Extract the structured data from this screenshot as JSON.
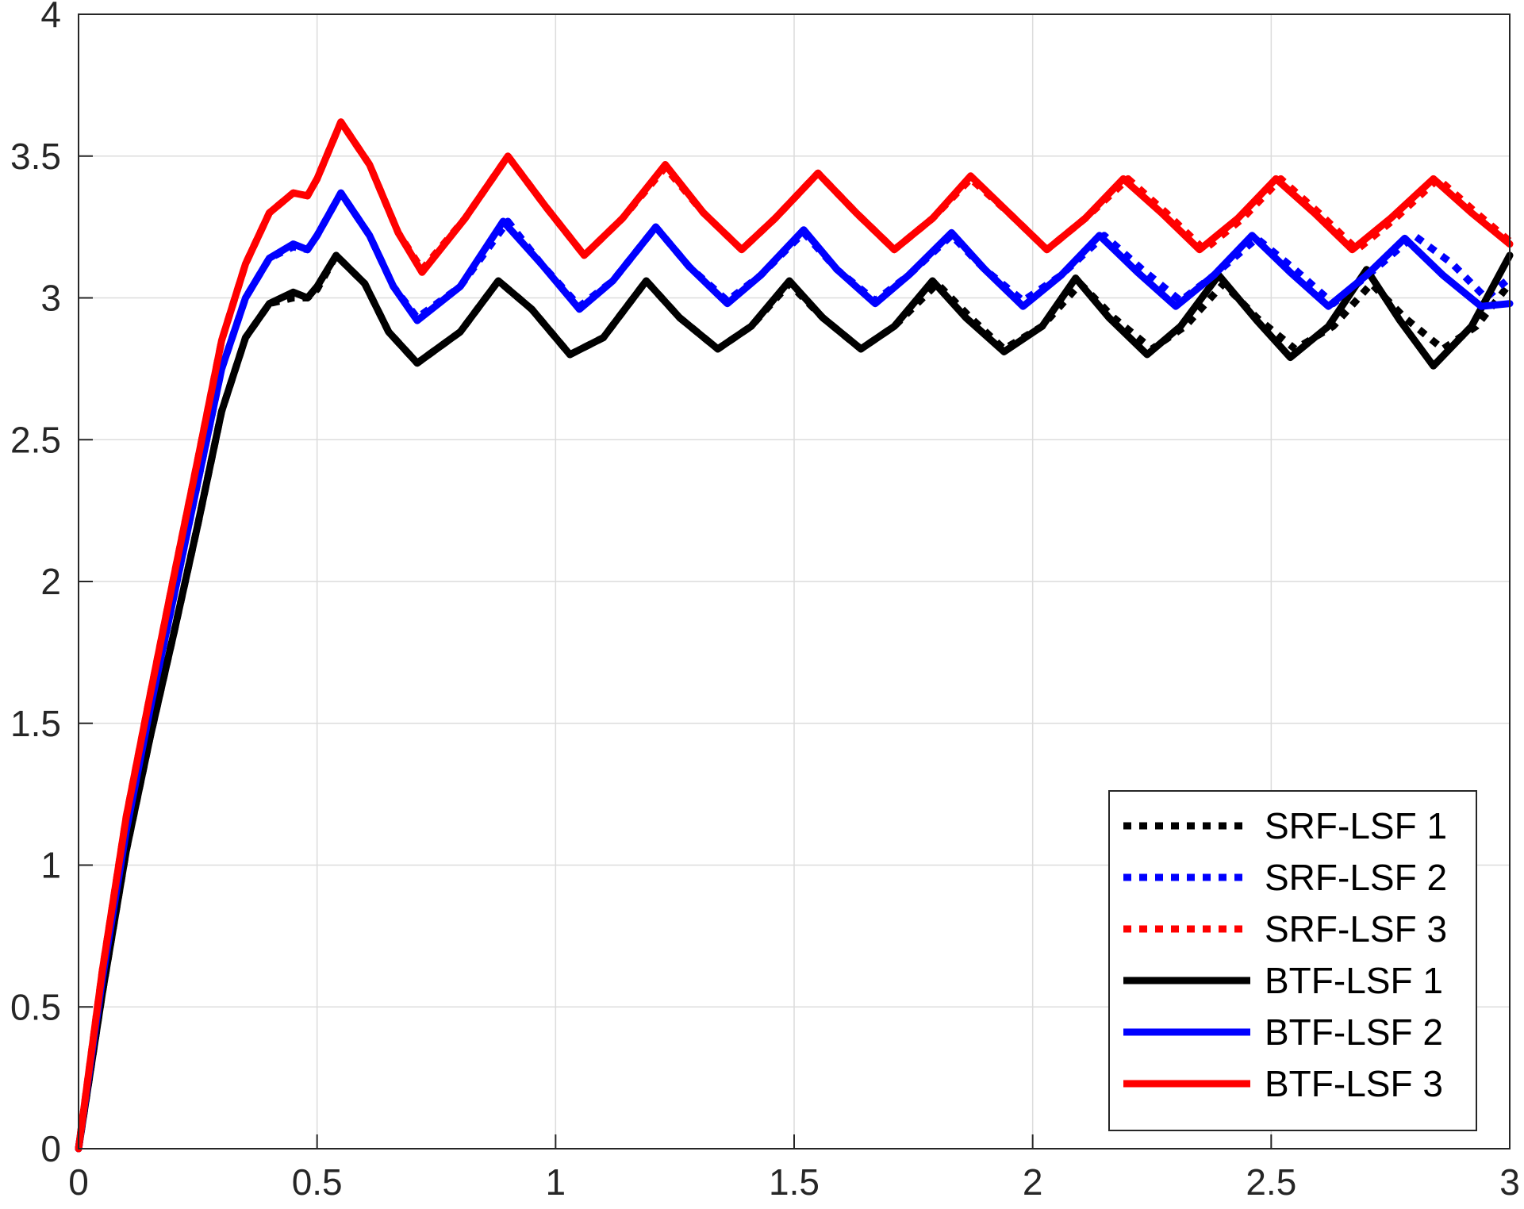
{
  "chart_data": {
    "type": "line",
    "title": "",
    "xlabel": "",
    "ylabel": "",
    "xlim": [
      0,
      3
    ],
    "ylim": [
      0,
      4
    ],
    "grid": true,
    "legend_position": "bottom-right",
    "x_ticks": [
      "0",
      "0.5",
      "1",
      "1.5",
      "2",
      "2.5",
      "3"
    ],
    "y_ticks": [
      "0",
      "0.5",
      "1",
      "1.5",
      "2",
      "2.5",
      "3",
      "3.5",
      "4"
    ],
    "series": [
      {
        "name": "SRF-LSF 1",
        "color": "#000000",
        "style": "dotted",
        "points": [
          [
            0,
            0
          ],
          [
            0.05,
            0.55
          ],
          [
            0.1,
            1.05
          ],
          [
            0.15,
            1.45
          ],
          [
            0.2,
            1.82
          ],
          [
            0.25,
            2.2
          ],
          [
            0.3,
            2.6
          ],
          [
            0.35,
            2.86
          ],
          [
            0.4,
            2.98
          ],
          [
            0.45,
            3.0
          ],
          [
            0.48,
            3.0
          ],
          [
            0.5,
            3.03
          ],
          [
            0.54,
            3.15
          ],
          [
            0.6,
            3.05
          ],
          [
            0.65,
            2.88
          ],
          [
            0.71,
            2.77
          ],
          [
            0.8,
            2.88
          ],
          [
            0.88,
            3.06
          ],
          [
            0.95,
            2.96
          ],
          [
            1.03,
            2.8
          ],
          [
            1.1,
            2.86
          ],
          [
            1.19,
            3.06
          ],
          [
            1.26,
            2.93
          ],
          [
            1.34,
            2.82
          ],
          [
            1.41,
            2.9
          ],
          [
            1.49,
            3.05
          ],
          [
            1.56,
            2.93
          ],
          [
            1.64,
            2.82
          ],
          [
            1.71,
            2.9
          ],
          [
            1.8,
            3.05
          ],
          [
            1.87,
            2.93
          ],
          [
            1.94,
            2.82
          ],
          [
            2.02,
            2.9
          ],
          [
            2.1,
            3.05
          ],
          [
            2.17,
            2.93
          ],
          [
            2.25,
            2.82
          ],
          [
            2.32,
            2.9
          ],
          [
            2.4,
            3.05
          ],
          [
            2.47,
            2.93
          ],
          [
            2.55,
            2.82
          ],
          [
            2.63,
            2.9
          ],
          [
            2.71,
            3.05
          ],
          [
            2.78,
            2.93
          ],
          [
            2.86,
            2.82
          ],
          [
            2.93,
            2.9
          ],
          [
            3.0,
            3.05
          ]
        ]
      },
      {
        "name": "SRF-LSF 2",
        "color": "#0000ff",
        "style": "dotted",
        "points": [
          [
            0,
            0
          ],
          [
            0.05,
            0.6
          ],
          [
            0.1,
            1.12
          ],
          [
            0.15,
            1.55
          ],
          [
            0.2,
            1.95
          ],
          [
            0.25,
            2.35
          ],
          [
            0.3,
            2.75
          ],
          [
            0.35,
            3.0
          ],
          [
            0.4,
            3.14
          ],
          [
            0.45,
            3.18
          ],
          [
            0.48,
            3.17
          ],
          [
            0.5,
            3.22
          ],
          [
            0.55,
            3.37
          ],
          [
            0.61,
            3.22
          ],
          [
            0.66,
            3.04
          ],
          [
            0.71,
            2.93
          ],
          [
            0.8,
            3.04
          ],
          [
            0.9,
            3.27
          ],
          [
            0.97,
            3.12
          ],
          [
            1.05,
            2.97
          ],
          [
            1.12,
            3.06
          ],
          [
            1.21,
            3.25
          ],
          [
            1.28,
            3.11
          ],
          [
            1.36,
            2.99
          ],
          [
            1.43,
            3.08
          ],
          [
            1.52,
            3.23
          ],
          [
            1.59,
            3.1
          ],
          [
            1.67,
            2.99
          ],
          [
            1.74,
            3.08
          ],
          [
            1.83,
            3.22
          ],
          [
            1.9,
            3.1
          ],
          [
            1.98,
            2.99
          ],
          [
            2.06,
            3.08
          ],
          [
            2.15,
            3.22
          ],
          [
            2.23,
            3.1
          ],
          [
            2.31,
            2.99
          ],
          [
            2.38,
            3.08
          ],
          [
            2.47,
            3.21
          ],
          [
            2.55,
            3.1
          ],
          [
            2.63,
            2.98
          ],
          [
            2.71,
            3.09
          ],
          [
            2.8,
            3.22
          ],
          [
            2.88,
            3.12
          ],
          [
            2.95,
            3.0
          ],
          [
            3.0,
            3.07
          ]
        ]
      },
      {
        "name": "SRF-LSF 3",
        "color": "#ff0000",
        "style": "dotted",
        "points": [
          [
            0,
            0
          ],
          [
            0.05,
            0.63
          ],
          [
            0.1,
            1.17
          ],
          [
            0.15,
            1.6
          ],
          [
            0.2,
            2.02
          ],
          [
            0.25,
            2.43
          ],
          [
            0.3,
            2.85
          ],
          [
            0.35,
            3.12
          ],
          [
            0.4,
            3.3
          ],
          [
            0.45,
            3.37
          ],
          [
            0.48,
            3.36
          ],
          [
            0.5,
            3.42
          ],
          [
            0.55,
            3.62
          ],
          [
            0.61,
            3.47
          ],
          [
            0.67,
            3.23
          ],
          [
            0.72,
            3.1
          ],
          [
            0.81,
            3.28
          ],
          [
            0.9,
            3.5
          ],
          [
            0.98,
            3.32
          ],
          [
            1.06,
            3.15
          ],
          [
            1.14,
            3.28
          ],
          [
            1.23,
            3.46
          ],
          [
            1.31,
            3.3
          ],
          [
            1.39,
            3.17
          ],
          [
            1.46,
            3.28
          ],
          [
            1.55,
            3.44
          ],
          [
            1.63,
            3.3
          ],
          [
            1.71,
            3.17
          ],
          [
            1.79,
            3.28
          ],
          [
            1.87,
            3.42
          ],
          [
            1.95,
            3.3
          ],
          [
            2.03,
            3.17
          ],
          [
            2.11,
            3.28
          ],
          [
            2.2,
            3.42
          ],
          [
            2.28,
            3.3
          ],
          [
            2.36,
            3.17
          ],
          [
            2.44,
            3.28
          ],
          [
            2.52,
            3.42
          ],
          [
            2.6,
            3.3
          ],
          [
            2.68,
            3.17
          ],
          [
            2.76,
            3.28
          ],
          [
            2.85,
            3.42
          ],
          [
            2.93,
            3.3
          ],
          [
            3.0,
            3.2
          ]
        ]
      },
      {
        "name": "BTF-LSF 1",
        "color": "#000000",
        "style": "solid",
        "points": [
          [
            0,
            0
          ],
          [
            0.05,
            0.55
          ],
          [
            0.1,
            1.05
          ],
          [
            0.15,
            1.45
          ],
          [
            0.2,
            1.82
          ],
          [
            0.25,
            2.2
          ],
          [
            0.3,
            2.6
          ],
          [
            0.35,
            2.86
          ],
          [
            0.4,
            2.98
          ],
          [
            0.45,
            3.02
          ],
          [
            0.48,
            3.0
          ],
          [
            0.5,
            3.04
          ],
          [
            0.54,
            3.15
          ],
          [
            0.6,
            3.05
          ],
          [
            0.65,
            2.88
          ],
          [
            0.71,
            2.77
          ],
          [
            0.8,
            2.88
          ],
          [
            0.88,
            3.06
          ],
          [
            0.95,
            2.96
          ],
          [
            1.03,
            2.8
          ],
          [
            1.1,
            2.86
          ],
          [
            1.19,
            3.06
          ],
          [
            1.26,
            2.93
          ],
          [
            1.34,
            2.82
          ],
          [
            1.41,
            2.9
          ],
          [
            1.49,
            3.06
          ],
          [
            1.56,
            2.93
          ],
          [
            1.64,
            2.82
          ],
          [
            1.71,
            2.9
          ],
          [
            1.79,
            3.06
          ],
          [
            1.86,
            2.93
          ],
          [
            1.94,
            2.81
          ],
          [
            2.02,
            2.9
          ],
          [
            2.09,
            3.07
          ],
          [
            2.16,
            2.93
          ],
          [
            2.24,
            2.8
          ],
          [
            2.31,
            2.9
          ],
          [
            2.39,
            3.08
          ],
          [
            2.47,
            2.92
          ],
          [
            2.54,
            2.79
          ],
          [
            2.62,
            2.9
          ],
          [
            2.7,
            3.1
          ],
          [
            2.77,
            2.92
          ],
          [
            2.84,
            2.76
          ],
          [
            2.92,
            2.9
          ],
          [
            3.0,
            3.15
          ]
        ]
      },
      {
        "name": "BTF-LSF 2",
        "color": "#0000ff",
        "style": "solid",
        "points": [
          [
            0,
            0
          ],
          [
            0.05,
            0.6
          ],
          [
            0.1,
            1.12
          ],
          [
            0.15,
            1.55
          ],
          [
            0.2,
            1.95
          ],
          [
            0.25,
            2.35
          ],
          [
            0.3,
            2.75
          ],
          [
            0.35,
            3.0
          ],
          [
            0.4,
            3.14
          ],
          [
            0.45,
            3.19
          ],
          [
            0.48,
            3.17
          ],
          [
            0.5,
            3.22
          ],
          [
            0.55,
            3.37
          ],
          [
            0.61,
            3.22
          ],
          [
            0.66,
            3.04
          ],
          [
            0.71,
            2.92
          ],
          [
            0.8,
            3.04
          ],
          [
            0.89,
            3.27
          ],
          [
            0.97,
            3.12
          ],
          [
            1.05,
            2.96
          ],
          [
            1.12,
            3.06
          ],
          [
            1.21,
            3.25
          ],
          [
            1.28,
            3.11
          ],
          [
            1.36,
            2.98
          ],
          [
            1.43,
            3.08
          ],
          [
            1.52,
            3.24
          ],
          [
            1.59,
            3.1
          ],
          [
            1.67,
            2.98
          ],
          [
            1.74,
            3.08
          ],
          [
            1.83,
            3.23
          ],
          [
            1.9,
            3.1
          ],
          [
            1.98,
            2.97
          ],
          [
            2.06,
            3.08
          ],
          [
            2.14,
            3.22
          ],
          [
            2.22,
            3.09
          ],
          [
            2.3,
            2.97
          ],
          [
            2.38,
            3.08
          ],
          [
            2.46,
            3.22
          ],
          [
            2.54,
            3.09
          ],
          [
            2.62,
            2.97
          ],
          [
            2.7,
            3.08
          ],
          [
            2.78,
            3.21
          ],
          [
            2.86,
            3.08
          ],
          [
            2.94,
            2.97
          ],
          [
            3.0,
            2.98
          ]
        ]
      },
      {
        "name": "BTF-LSF 3",
        "color": "#ff0000",
        "style": "solid",
        "points": [
          [
            0,
            0
          ],
          [
            0.05,
            0.63
          ],
          [
            0.1,
            1.17
          ],
          [
            0.15,
            1.6
          ],
          [
            0.2,
            2.02
          ],
          [
            0.25,
            2.43
          ],
          [
            0.3,
            2.85
          ],
          [
            0.35,
            3.12
          ],
          [
            0.4,
            3.3
          ],
          [
            0.45,
            3.37
          ],
          [
            0.48,
            3.36
          ],
          [
            0.5,
            3.42
          ],
          [
            0.55,
            3.62
          ],
          [
            0.61,
            3.47
          ],
          [
            0.67,
            3.23
          ],
          [
            0.72,
            3.09
          ],
          [
            0.81,
            3.28
          ],
          [
            0.9,
            3.5
          ],
          [
            0.98,
            3.32
          ],
          [
            1.06,
            3.15
          ],
          [
            1.14,
            3.28
          ],
          [
            1.23,
            3.47
          ],
          [
            1.31,
            3.3
          ],
          [
            1.39,
            3.17
          ],
          [
            1.46,
            3.28
          ],
          [
            1.55,
            3.44
          ],
          [
            1.63,
            3.3
          ],
          [
            1.71,
            3.17
          ],
          [
            1.79,
            3.28
          ],
          [
            1.87,
            3.43
          ],
          [
            1.95,
            3.3
          ],
          [
            2.03,
            3.17
          ],
          [
            2.11,
            3.28
          ],
          [
            2.19,
            3.42
          ],
          [
            2.27,
            3.3
          ],
          [
            2.35,
            3.17
          ],
          [
            2.43,
            3.28
          ],
          [
            2.51,
            3.42
          ],
          [
            2.59,
            3.3
          ],
          [
            2.67,
            3.17
          ],
          [
            2.75,
            3.28
          ],
          [
            2.84,
            3.42
          ],
          [
            2.92,
            3.3
          ],
          [
            3.0,
            3.19
          ]
        ]
      }
    ]
  }
}
